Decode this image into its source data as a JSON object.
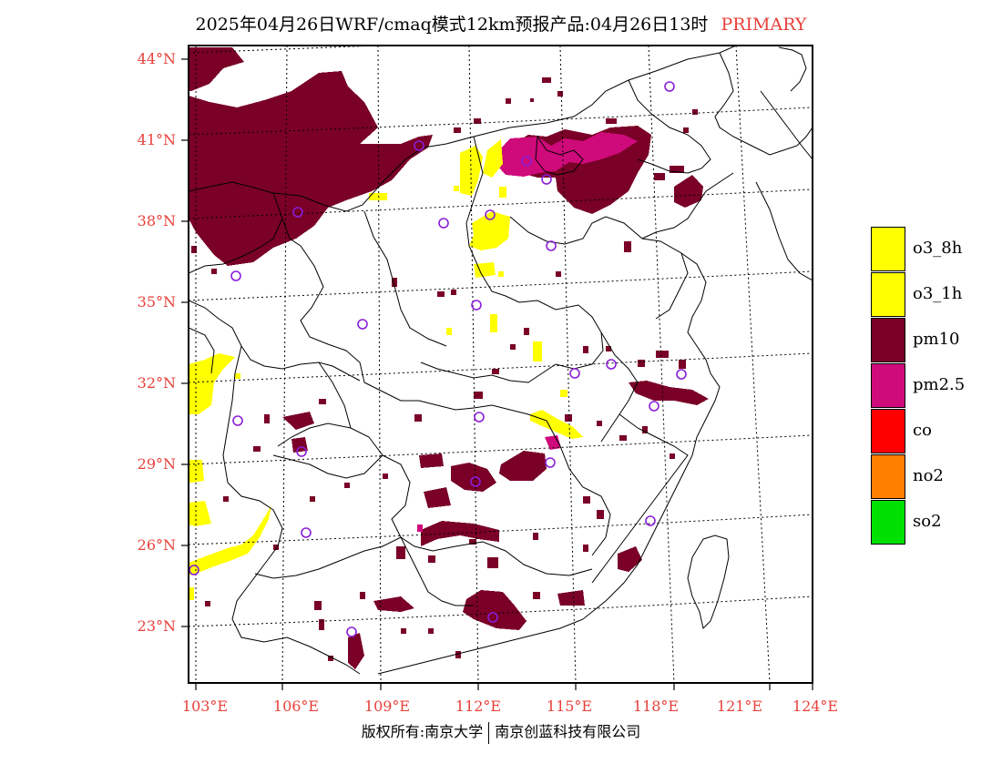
{
  "header": {
    "title": "2025年04月26日WRF/cmaq模式12km预报产品:04月26日13时",
    "mode": "PRIMARY"
  },
  "axes": {
    "lat_labels": [
      "44°N",
      "41°N",
      "38°N",
      "35°N",
      "32°N",
      "29°N",
      "26°N",
      "23°N"
    ],
    "lon_labels": [
      "103°E",
      "106°E",
      "109°E",
      "112°E",
      "115°E",
      "118°E",
      "121°E",
      "124°E"
    ]
  },
  "legend": {
    "items": [
      {
        "label": "o3_8h",
        "color": "#ffff00"
      },
      {
        "label": "o3_1h",
        "color": "#ffff00"
      },
      {
        "label": "pm10",
        "color": "#7a0027"
      },
      {
        "label": "pm2.5",
        "color": "#cf0a7a"
      },
      {
        "label": "co",
        "color": "#ff0000"
      },
      {
        "label": "no2",
        "color": "#ff7f00"
      },
      {
        "label": "so2",
        "color": "#00e000"
      }
    ]
  },
  "footer": {
    "left": "版权所有:南京大学",
    "right": "南京创蓝科技有限公司"
  }
}
